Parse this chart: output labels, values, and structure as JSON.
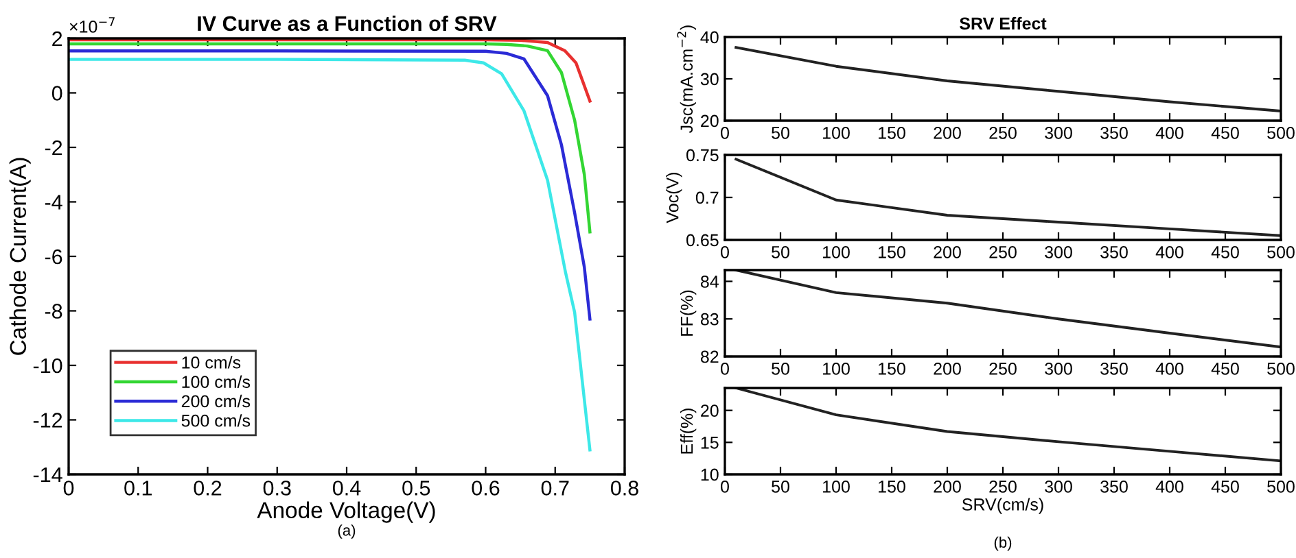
{
  "chart_data": [
    {
      "type": "line",
      "title": "IV Curve as a Function of SRV",
      "xlabel": "Anode Voltage(V)",
      "ylabel": "Cathode Current(A)",
      "annotations": [
        "×10$^{−7}$",
        "(a)"
      ],
      "xlim": [
        0,
        0.8
      ],
      "xticks": [
        0,
        0.1,
        0.2,
        0.3,
        0.4,
        0.5,
        0.6,
        0.7,
        0.8
      ],
      "ylim": [
        -14,
        2
      ],
      "yticks": [
        -14,
        -12,
        -10,
        -8,
        -6,
        -4,
        -2,
        0,
        2
      ],
      "legend": "bottom left",
      "grid": false,
      "marker": "none",
      "line_style": "solid",
      "series": [
        {
          "name": "10 cm/s",
          "color": "#e8302f",
          "x": [
            0,
            0.3,
            0.6,
            0.65,
            0.689,
            0.714,
            0.73,
            0.75
          ],
          "values": [
            1.95,
            1.95,
            1.95,
            1.93,
            1.85,
            1.55,
            1.1,
            -0.3
          ]
        },
        {
          "name": "100 cm/s",
          "color": "#33d633",
          "x": [
            0,
            0.3,
            0.6,
            0.63,
            0.66,
            0.689,
            0.709,
            0.728,
            0.742,
            0.75
          ],
          "values": [
            1.8,
            1.8,
            1.8,
            1.78,
            1.72,
            1.55,
            0.75,
            -1.0,
            -3.0,
            -5.1
          ]
        },
        {
          "name": "200 cm/s",
          "color": "#2b2bd6",
          "x": [
            0,
            0.3,
            0.6,
            0.63,
            0.655,
            0.689,
            0.709,
            0.728,
            0.742,
            0.75
          ],
          "values": [
            1.54,
            1.54,
            1.53,
            1.45,
            1.25,
            -0.1,
            -1.9,
            -4.4,
            -6.4,
            -8.3
          ]
        },
        {
          "name": "500 cm/s",
          "color": "#3de8e8",
          "x": [
            0,
            0.3,
            0.57,
            0.597,
            0.623,
            0.655,
            0.689,
            0.715,
            0.728,
            0.75
          ],
          "values": [
            1.23,
            1.23,
            1.2,
            1.1,
            0.7,
            -0.65,
            -3.2,
            -6.6,
            -8.05,
            -13.1
          ]
        }
      ]
    },
    {
      "type": "line",
      "title": "SRV Effect",
      "ylabel": "Jsc(mA.cm$^{−2}$)",
      "xlim": [
        0,
        500
      ],
      "xticks": [
        0,
        50,
        100,
        150,
        200,
        250,
        300,
        350,
        400,
        450,
        500
      ],
      "ylim": [
        20,
        40
      ],
      "yticks": [
        20,
        30,
        40
      ],
      "grid": false,
      "marker": "none",
      "line_style": "solid",
      "series": [
        {
          "color": "#222222",
          "x": [
            10,
            100,
            200,
            300,
            400,
            500
          ],
          "values": [
            37.5,
            33,
            29.5,
            27,
            24.5,
            22.3
          ]
        }
      ]
    },
    {
      "type": "line",
      "ylabel": "Voc(V)",
      "xlim": [
        0,
        500
      ],
      "xticks": [
        0,
        50,
        100,
        150,
        200,
        250,
        300,
        350,
        400,
        450,
        500
      ],
      "ylim": [
        0.65,
        0.75
      ],
      "yticks": [
        0.65,
        0.7,
        0.75
      ],
      "grid": false,
      "marker": "none",
      "line_style": "solid",
      "series": [
        {
          "color": "#222222",
          "x": [
            10,
            100,
            200,
            300,
            400,
            500
          ],
          "values": [
            0.745,
            0.697,
            0.679,
            0.671,
            0.663,
            0.655
          ]
        }
      ]
    },
    {
      "type": "line",
      "ylabel": "FF(%)",
      "xlim": [
        0,
        500
      ],
      "xticks": [
        0,
        50,
        100,
        150,
        200,
        250,
        300,
        350,
        400,
        450,
        500
      ],
      "ylim": [
        82,
        84.3
      ],
      "yticks": [
        82,
        83,
        84
      ],
      "grid": false,
      "marker": "none",
      "line_style": "solid",
      "series": [
        {
          "color": "#222222",
          "x": [
            10,
            100,
            200,
            300,
            400,
            500
          ],
          "values": [
            84.3,
            83.7,
            83.42,
            83.0,
            82.62,
            82.25
          ]
        }
      ]
    },
    {
      "type": "line",
      "ylabel": "Eff(%)",
      "xlabel": "SRV(cm/s)",
      "annotations": [
        "(b)"
      ],
      "xlim": [
        0,
        500
      ],
      "xticks": [
        0,
        50,
        100,
        150,
        200,
        250,
        300,
        350,
        400,
        450,
        500
      ],
      "ylim": [
        10,
        23.5
      ],
      "yticks": [
        10,
        15,
        20
      ],
      "grid": false,
      "marker": "none",
      "line_style": "solid",
      "series": [
        {
          "color": "#222222",
          "x": [
            10,
            100,
            200,
            300,
            400,
            500
          ],
          "values": [
            23.5,
            19.3,
            16.7,
            15.1,
            13.6,
            12.1
          ]
        }
      ]
    }
  ]
}
